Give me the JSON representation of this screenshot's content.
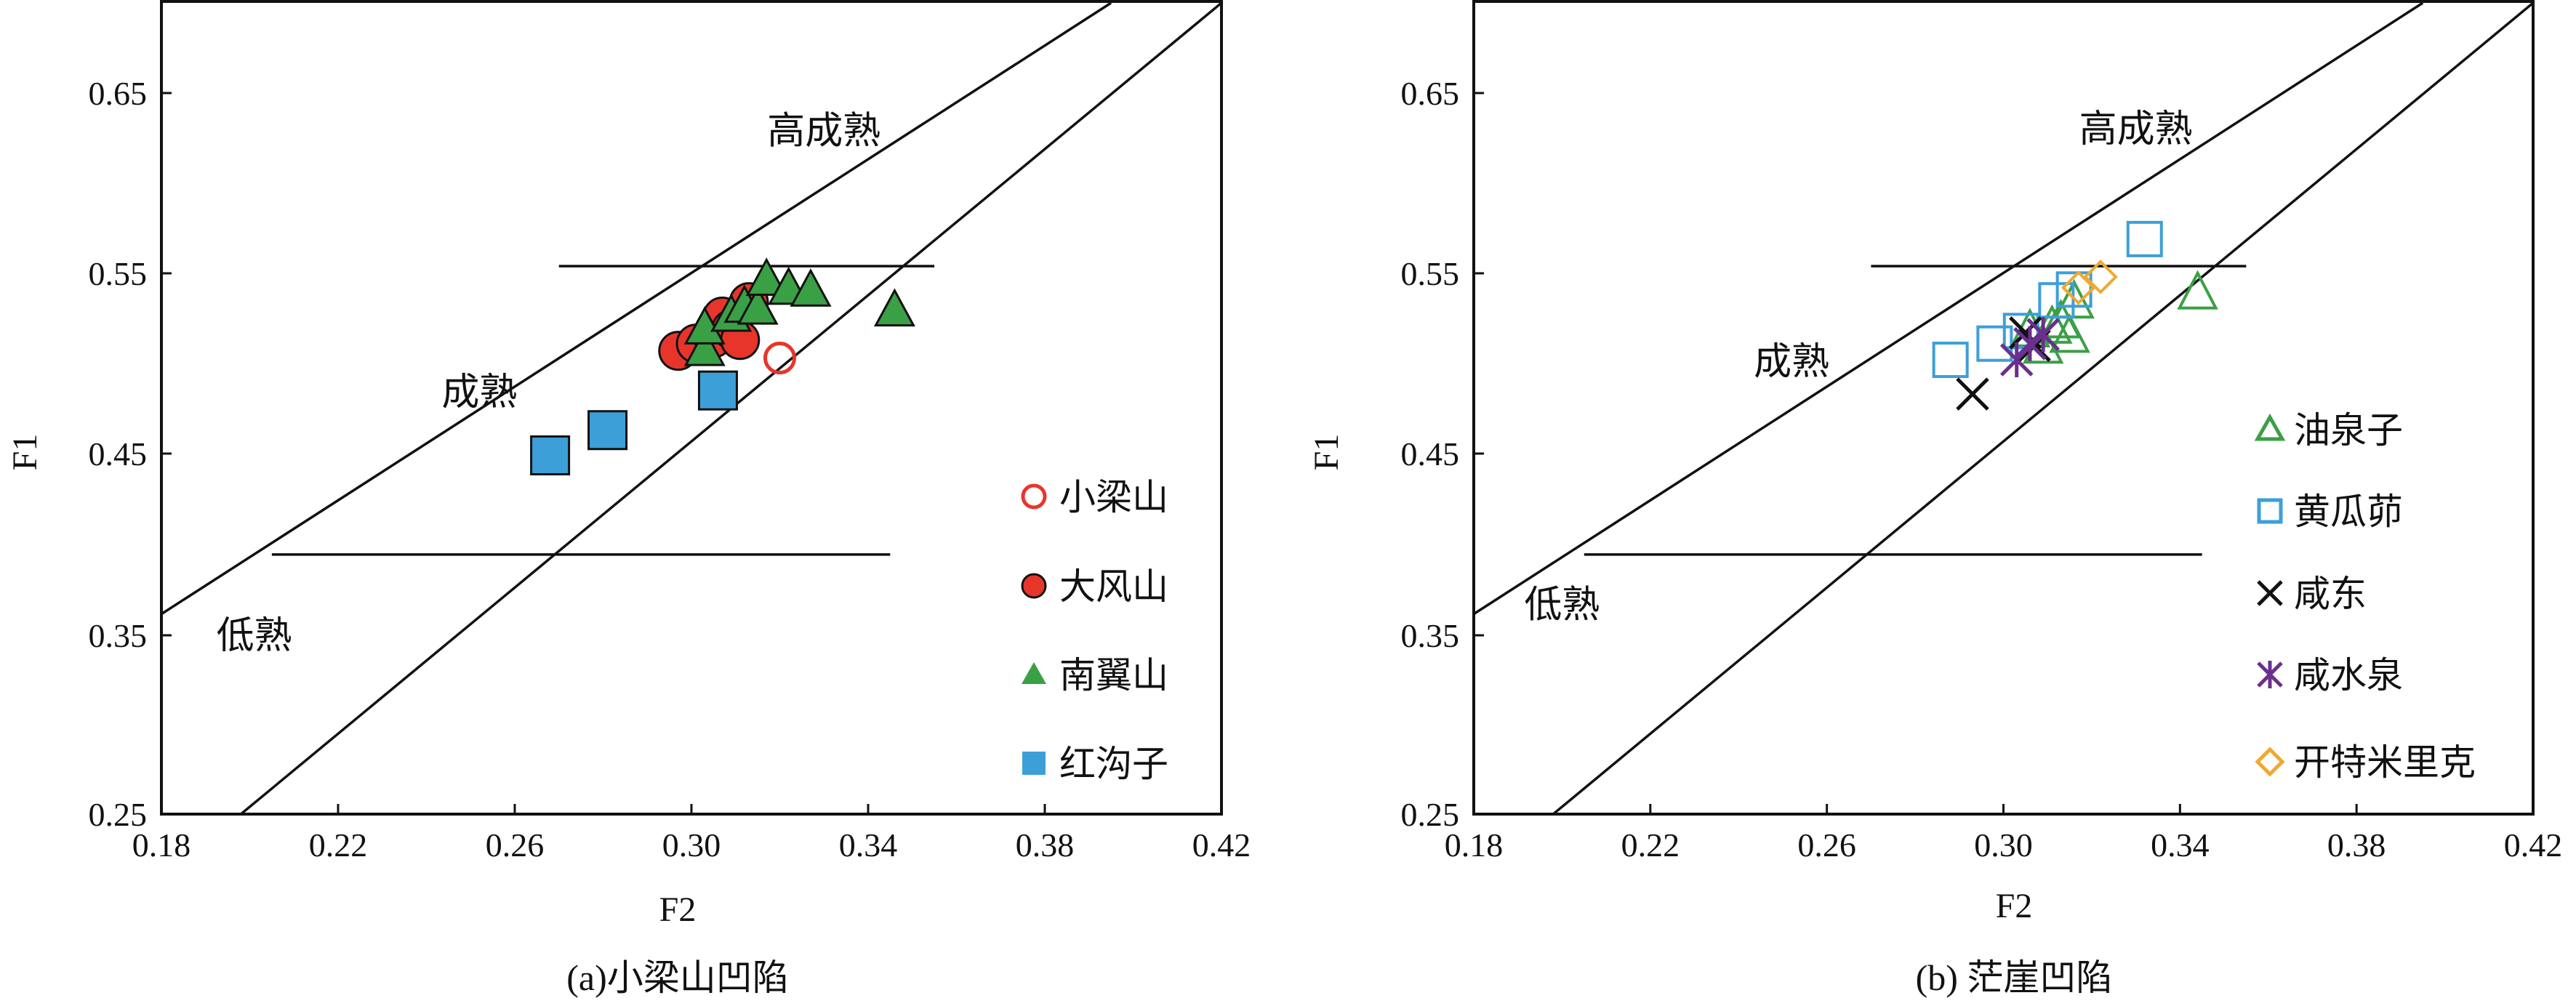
{
  "figures": [
    {
      "caption": "(a)小梁山凹陷",
      "xlabel": "F2",
      "ylabel": "F1",
      "zones": [
        "高成熟",
        "成熟",
        "低熟"
      ],
      "legend": [
        {
          "label": "小梁山",
          "marker": "circle-open",
          "color": "#e8352b"
        },
        {
          "label": "大风山",
          "marker": "circle-filled",
          "color": "#e8352b"
        },
        {
          "label": "南翼山",
          "marker": "triangle-filled",
          "color": "#3aa045"
        },
        {
          "label": "红沟子",
          "marker": "square-filled",
          "color": "#3d9fd8"
        }
      ]
    },
    {
      "caption": "(b) 茫崖凹陷",
      "xlabel": "F2",
      "ylabel": "F1",
      "zones": [
        "高成熟",
        "成熟",
        "低熟"
      ],
      "legend": [
        {
          "label": "油泉子",
          "marker": "triangle-open",
          "color": "#3aa045"
        },
        {
          "label": "黄瓜茆",
          "marker": "square-open",
          "color": "#3d9fd8"
        },
        {
          "label": "咸东",
          "marker": "x",
          "color": "#111111"
        },
        {
          "label": "咸水泉",
          "marker": "asterisk",
          "color": "#6a2f8f"
        },
        {
          "label": "开特米里克",
          "marker": "diamond-open",
          "color": "#f0a830"
        }
      ]
    }
  ],
  "chart_data": [
    {
      "type": "scatter",
      "title": "",
      "caption": "(a)小梁山凹陷",
      "xlabel": "F2",
      "ylabel": "F1",
      "xlim": [
        0.18,
        0.42
      ],
      "ylim": [
        0.25,
        0.7
      ],
      "xticks": [
        "0.18",
        "0.22",
        "0.26",
        "0.30",
        "0.34",
        "0.38",
        "0.42"
      ],
      "yticks": [
        "0.25",
        "0.35",
        "0.45",
        "0.55",
        "0.65"
      ],
      "boundaries": {
        "upper_diagonal": [
          [
            0.18,
            0.361
          ],
          [
            0.395,
            0.7
          ]
        ],
        "lower_diagonal": [
          [
            0.198,
            0.25
          ],
          [
            0.42,
            0.7
          ]
        ],
        "mature_top": [
          [
            0.27,
            0.554
          ],
          [
            0.355,
            0.554
          ]
        ],
        "mature_bottom": [
          [
            0.205,
            0.394
          ],
          [
            0.345,
            0.394
          ]
        ]
      },
      "zone_labels": [
        {
          "text": "高成熟",
          "x": 0.33,
          "y": 0.622
        },
        {
          "text": "成熟",
          "x": 0.252,
          "y": 0.477
        },
        {
          "text": "低熟",
          "x": 0.201,
          "y": 0.342
        }
      ],
      "series": [
        {
          "name": "小梁山",
          "marker": "circle-open",
          "color": "#e8352b",
          "points": [
            [
              0.32,
              0.503
            ]
          ]
        },
        {
          "name": "大风山",
          "marker": "circle-filled",
          "color": "#e8352b",
          "points": [
            [
              0.297,
              0.507
            ],
            [
              0.301,
              0.511
            ],
            [
              0.305,
              0.514
            ],
            [
              0.307,
              0.526
            ],
            [
              0.309,
              0.519
            ],
            [
              0.311,
              0.513
            ],
            [
              0.313,
              0.534
            ]
          ]
        },
        {
          "name": "南翼山",
          "marker": "triangle-filled",
          "color": "#3aa045",
          "points": [
            [
              0.303,
              0.508
            ],
            [
              0.303,
              0.52
            ],
            [
              0.309,
              0.527
            ],
            [
              0.312,
              0.532
            ],
            [
              0.315,
              0.531
            ],
            [
              0.317,
              0.547
            ],
            [
              0.322,
              0.542
            ],
            [
              0.327,
              0.541
            ],
            [
              0.346,
              0.53
            ]
          ]
        },
        {
          "name": "红沟子",
          "marker": "square-filled",
          "color": "#3d9fd8",
          "points": [
            [
              0.268,
              0.449
            ],
            [
              0.281,
              0.463
            ],
            [
              0.306,
              0.485
            ]
          ]
        }
      ]
    },
    {
      "type": "scatter",
      "title": "",
      "caption": "(b) 茫崖凹陷",
      "xlabel": "F2",
      "ylabel": "F1",
      "xlim": [
        0.18,
        0.42
      ],
      "ylim": [
        0.25,
        0.7
      ],
      "xticks": [
        "0.18",
        "0.22",
        "0.26",
        "0.30",
        "0.34",
        "0.38",
        "0.42"
      ],
      "yticks": [
        "0.25",
        "0.35",
        "0.45",
        "0.55",
        "0.65"
      ],
      "boundaries": {
        "upper_diagonal": [
          [
            0.18,
            0.361
          ],
          [
            0.395,
            0.7
          ]
        ],
        "lower_diagonal": [
          [
            0.198,
            0.25
          ],
          [
            0.42,
            0.7
          ]
        ],
        "mature_top": [
          [
            0.27,
            0.554
          ],
          [
            0.355,
            0.554
          ]
        ],
        "mature_bottom": [
          [
            0.205,
            0.394
          ],
          [
            0.345,
            0.394
          ]
        ]
      },
      "zone_labels": [
        {
          "text": "高成熟",
          "x": 0.33,
          "y": 0.623
        },
        {
          "text": "成熟",
          "x": 0.252,
          "y": 0.494
        },
        {
          "text": "低熟",
          "x": 0.2,
          "y": 0.359
        }
      ],
      "series": [
        {
          "name": "油泉子",
          "marker": "triangle-open",
          "color": "#3aa045",
          "points": [
            [
              0.306,
              0.519
            ],
            [
              0.309,
              0.51
            ],
            [
              0.311,
              0.521
            ],
            [
              0.313,
              0.524
            ],
            [
              0.315,
              0.516
            ],
            [
              0.316,
              0.535
            ],
            [
              0.344,
              0.54
            ]
          ]
        },
        {
          "name": "黄瓜茆",
          "marker": "square-open",
          "color": "#3d9fd8",
          "points": [
            [
              0.288,
              0.502
            ],
            [
              0.298,
              0.511
            ],
            [
              0.304,
              0.518
            ],
            [
              0.312,
              0.535
            ],
            [
              0.316,
              0.541
            ],
            [
              0.332,
              0.569
            ]
          ]
        },
        {
          "name": "咸东",
          "marker": "x",
          "color": "#111111",
          "points": [
            [
              0.293,
              0.483
            ],
            [
              0.305,
              0.517
            ],
            [
              0.307,
              0.51
            ]
          ]
        },
        {
          "name": "咸水泉",
          "marker": "asterisk",
          "color": "#6a2f8f",
          "points": [
            [
              0.303,
              0.502
            ],
            [
              0.306,
              0.511
            ],
            [
              0.309,
              0.516
            ]
          ]
        },
        {
          "name": "开特米里克",
          "marker": "diamond-open",
          "color": "#f0a830",
          "points": [
            [
              0.317,
              0.542
            ],
            [
              0.322,
              0.548
            ]
          ]
        }
      ]
    }
  ]
}
